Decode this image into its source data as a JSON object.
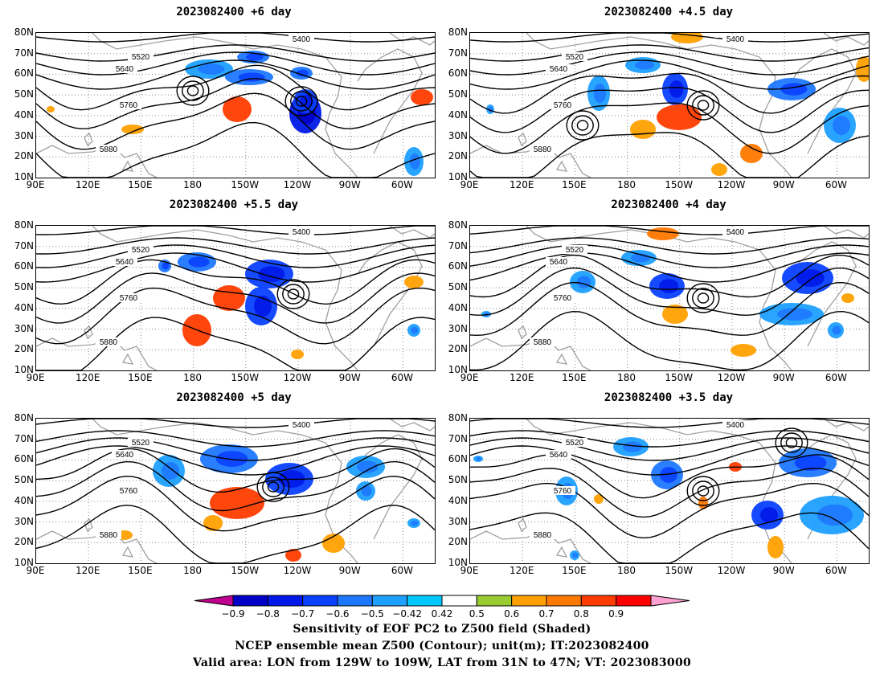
{
  "panels": [
    {
      "title": "2023082400  +6 day"
    },
    {
      "title": "2023082400  +4.5 day"
    },
    {
      "title": "2023082400  +5.5 day"
    },
    {
      "title": "2023082400  +4 day"
    },
    {
      "title": "2023082400  +5 day"
    },
    {
      "title": "2023082400  +3.5 day"
    }
  ],
  "map": {
    "lat_labels": [
      "80N",
      "70N",
      "60N",
      "50N",
      "40N",
      "30N",
      "20N",
      "10N"
    ],
    "lon_labels": [
      "90E",
      "120E",
      "150E",
      "180",
      "150W",
      "120W",
      "90W",
      "60W"
    ],
    "contour_labels": [
      "5400",
      "5520",
      "5640",
      "5760",
      "5880"
    ],
    "colors": {
      "contour": "#000000",
      "coast": "#a0a0a0",
      "grid": "#888888"
    }
  },
  "colorbar": {
    "ticks": [
      "−0.9",
      "−0.8",
      "−0.7",
      "−0.6",
      "−0.5",
      "−0.42",
      "0.42",
      "0.5",
      "0.6",
      "0.7",
      "0.8",
      "0.9"
    ],
    "colors": [
      "#c0008f",
      "#0000c8",
      "#0018e8",
      "#0a40ff",
      "#1e78ff",
      "#1ea0ff",
      "#00c8ff",
      "#ffffff",
      "#98cc30",
      "#ffa000",
      "#ff7800",
      "#ff3c00",
      "#ff0000",
      "#ffa0d2"
    ]
  },
  "caption": {
    "line1": "Sensitivity of EOF PC2 to Z500 field (Shaded)",
    "line2": "NCEP ensemble mean Z500 (Contour); unit(m); IT:2023082400",
    "line3": "Valid area: LON from 129W to 109W, LAT from 31N to 47N; VT: 2023083000"
  }
}
